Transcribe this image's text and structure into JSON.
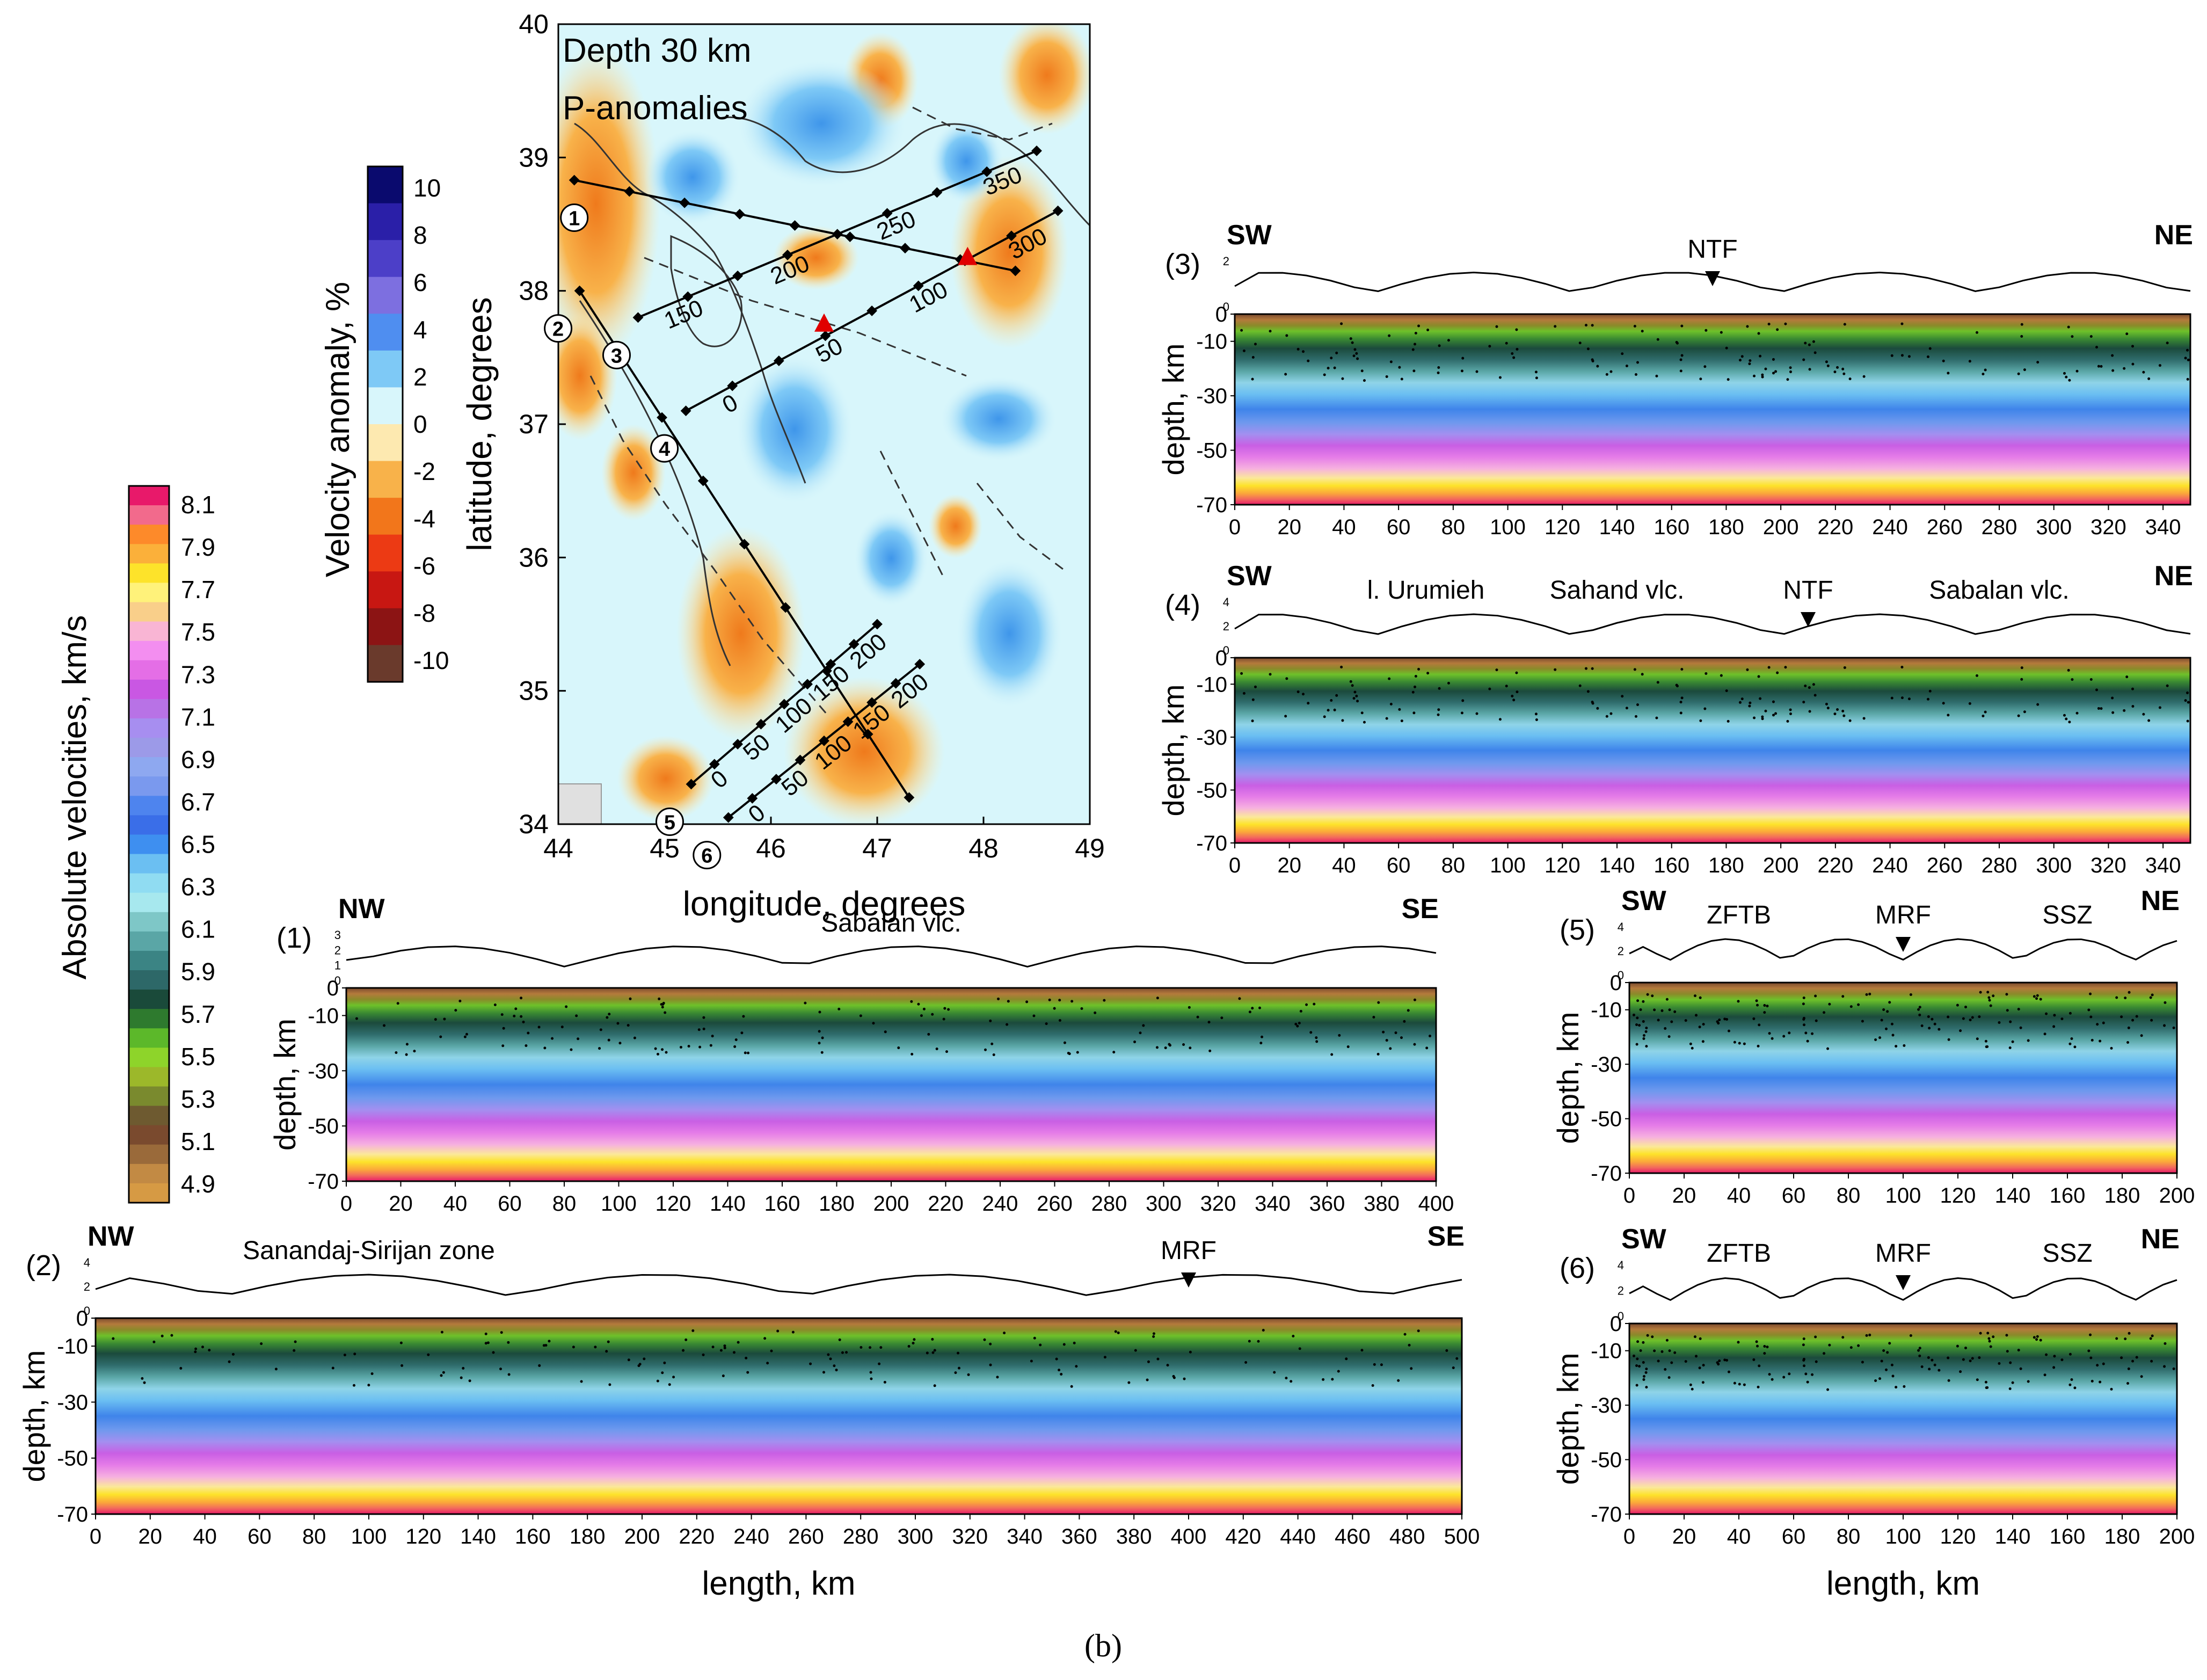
{
  "figure": {
    "caption": "(b)"
  },
  "map": {
    "title_line1": "Depth 30 km",
    "title_line2": "P-anomalies",
    "xlabel": "longitude, degrees",
    "ylabel": "latitude, degrees",
    "x_ticks": [
      "44",
      "45",
      "46",
      "47",
      "48",
      "49"
    ],
    "y_ticks": [
      "34",
      "35",
      "36",
      "37",
      "38",
      "39",
      "40"
    ],
    "x_range": [
      44,
      49
    ],
    "y_range": [
      34,
      40
    ],
    "profiles": [
      {
        "id": "1",
        "start": [
          44.15,
          38.83
        ],
        "end": [
          48.3,
          38.15
        ],
        "ticks": []
      },
      {
        "id": "2",
        "start": [
          44.2,
          38.0
        ],
        "end": [
          47.3,
          34.2
        ],
        "ticks": []
      },
      {
        "id": "3",
        "start": [
          44.75,
          37.8
        ],
        "end": [
          48.5,
          39.05
        ],
        "ticks": [
          "150",
          "200",
          "250",
          "350"
        ]
      },
      {
        "id": "4",
        "start": [
          45.2,
          37.1
        ],
        "end": [
          48.7,
          38.6
        ],
        "ticks": [
          "0",
          "50",
          "100",
          "300"
        ]
      },
      {
        "id": "5",
        "start": [
          45.25,
          34.3
        ],
        "end": [
          47.0,
          35.5
        ],
        "ticks": [
          "0",
          "50",
          "100",
          "150",
          "200"
        ]
      },
      {
        "id": "6",
        "start": [
          45.6,
          34.05
        ],
        "end": [
          47.4,
          35.2
        ],
        "ticks": [
          "0",
          "50",
          "100",
          "150",
          "200"
        ]
      }
    ],
    "volcanoes": [
      [
        46.5,
        37.75
      ],
      [
        47.85,
        38.25
      ]
    ]
  },
  "anomaly_colorbar": {
    "label": "Velocity anomaly, %",
    "ticks": [
      "10",
      "8",
      "6",
      "4",
      "2",
      "0",
      "-2",
      "-4",
      "-6",
      "-8",
      "-10"
    ],
    "colors": [
      "#0a0a6e",
      "#2a1fa8",
      "#4c3fc8",
      "#7d6fe0",
      "#4f8ef0",
      "#7ec9f6",
      "#d8f6fb",
      "#fde9b0",
      "#f8b24a",
      "#f2761b",
      "#ec3a14",
      "#c81712",
      "#8c1414",
      "#6a3a2c"
    ]
  },
  "velocity_colorbar": {
    "label": "Absolute velocities, km/s",
    "ticks": [
      "8.1",
      "7.9",
      "7.7",
      "7.5",
      "7.3",
      "7.1",
      "6.9",
      "6.7",
      "6.5",
      "6.3",
      "6.1",
      "5.9",
      "5.7",
      "5.5",
      "5.3",
      "5.1",
      "4.9"
    ],
    "colors": [
      "#e8196a",
      "#f26a8c",
      "#fd8a2a",
      "#fbb03a",
      "#fde32a",
      "#fff27a",
      "#f9cf8a",
      "#f9b5d4",
      "#f38ef0",
      "#e46ee6",
      "#c957e3",
      "#b872e6",
      "#a78ef0",
      "#9c9ae8",
      "#8ea8f0",
      "#7a99ee",
      "#4e84ee",
      "#3a6ee8",
      "#3e8ff0",
      "#6bbff2",
      "#90dcf2",
      "#a7e8ee",
      "#7ec7c7",
      "#5aa6a6",
      "#3b8484",
      "#2d6868",
      "#1a4a3a",
      "#2e7a2e",
      "#5cb82a",
      "#8ed42a",
      "#9cb82a",
      "#7a8a2e",
      "#6e5a30",
      "#7a4a2e",
      "#9a6a3a",
      "#c28a44",
      "#d69a44"
    ]
  },
  "sections": [
    {
      "id": "(1)",
      "left": "NW",
      "right": "SE",
      "labels": [
        "Sabalan vlc."
      ],
      "x_ticks": [
        "0",
        "20",
        "40",
        "60",
        "80",
        "100",
        "120",
        "140",
        "160",
        "180",
        "200",
        "220",
        "240",
        "260",
        "280",
        "300",
        "320",
        "340",
        "360",
        "380",
        "400"
      ],
      "xmax": 400,
      "topo_ticks": [
        "3",
        "2",
        "1",
        "0"
      ]
    },
    {
      "id": "(2)",
      "left": "NW",
      "right": "SE",
      "labels": [
        "Sanandaj-Sirijan zone",
        "MRF"
      ],
      "x_ticks": [
        "0",
        "20",
        "40",
        "60",
        "80",
        "100",
        "120",
        "140",
        "160",
        "180",
        "200",
        "220",
        "240",
        "260",
        "280",
        "300",
        "320",
        "340",
        "360",
        "380",
        "400",
        "420",
        "440",
        "460",
        "480",
        "500"
      ],
      "xmax": 500,
      "topo_ticks": [
        "4",
        "2",
        "0"
      ]
    },
    {
      "id": "(3)",
      "left": "SW",
      "right": "NE",
      "labels": [
        "NTF"
      ],
      "x_ticks": [
        "0",
        "20",
        "40",
        "60",
        "80",
        "100",
        "120",
        "140",
        "160",
        "180",
        "200",
        "220",
        "240",
        "260",
        "280",
        "300",
        "320",
        "340"
      ],
      "xmax": 350,
      "topo_ticks": [
        "2",
        "0"
      ]
    },
    {
      "id": "(4)",
      "left": "SW",
      "right": "NE",
      "labels": [
        "l. Urumieh",
        "Sahand vlc.",
        "NTF",
        "Sabalan vlc."
      ],
      "x_ticks": [
        "0",
        "20",
        "40",
        "60",
        "80",
        "100",
        "120",
        "140",
        "160",
        "180",
        "200",
        "220",
        "240",
        "260",
        "280",
        "300",
        "320",
        "340"
      ],
      "xmax": 350,
      "topo_ticks": [
        "4",
        "2",
        "0"
      ]
    },
    {
      "id": "(5)",
      "left": "SW",
      "right": "NE",
      "labels": [
        "ZFTB",
        "MRF",
        "SSZ"
      ],
      "x_ticks": [
        "0",
        "20",
        "40",
        "60",
        "80",
        "100",
        "120",
        "140",
        "160",
        "180",
        "200"
      ],
      "xmax": 200,
      "topo_ticks": [
        "4",
        "2",
        "0"
      ]
    },
    {
      "id": "(6)",
      "left": "SW",
      "right": "NE",
      "labels": [
        "ZFTB",
        "MRF",
        "SSZ"
      ],
      "x_ticks": [
        "0",
        "20",
        "40",
        "60",
        "80",
        "100",
        "120",
        "140",
        "160",
        "180",
        "200"
      ],
      "xmax": 200,
      "topo_ticks": [
        "4",
        "2",
        "0"
      ]
    }
  ],
  "section_common": {
    "ylabel": "depth, km",
    "xlabel": "length, km",
    "y_ticks": [
      "0",
      "-10",
      "-30",
      "-50",
      "-70"
    ]
  }
}
